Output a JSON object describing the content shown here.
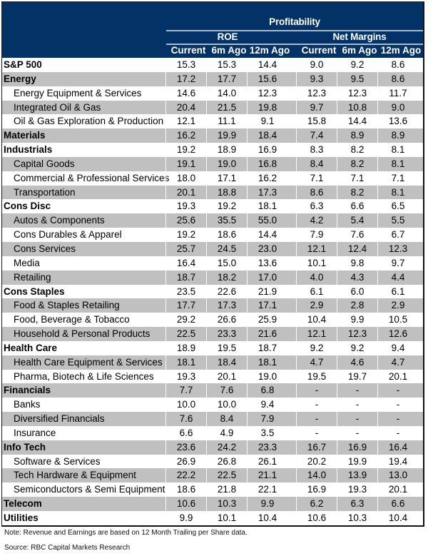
{
  "header": {
    "group_title": "Profitability",
    "roe_title": "ROE",
    "nm_title": "Net Margins",
    "columns": [
      "Current",
      "6m Ago",
      "12m Ago",
      "Current",
      "6m Ago",
      "12m Ago"
    ]
  },
  "rows": [
    {
      "name": "S&P 500",
      "level": "top",
      "values": [
        "15.3",
        "15.3",
        "14.4",
        "9.0",
        "9.2",
        "8.6"
      ]
    },
    {
      "name": "Energy",
      "level": "sector",
      "values": [
        "17.2",
        "17.7",
        "15.6",
        "9.3",
        "9.5",
        "8.6"
      ]
    },
    {
      "name": "Energy Equipment & Services",
      "level": "sub",
      "values": [
        "14.6",
        "14.0",
        "12.3",
        "12.3",
        "12.3",
        "11.7"
      ]
    },
    {
      "name": "Integrated Oil & Gas",
      "level": "sub",
      "values": [
        "20.4",
        "21.5",
        "19.8",
        "9.7",
        "10.8",
        "9.0"
      ]
    },
    {
      "name": "Oil & Gas Exploration & Production",
      "level": "sub",
      "values": [
        "12.1",
        "11.1",
        "9.1",
        "15.8",
        "14.4",
        "13.6"
      ]
    },
    {
      "name": "Materials",
      "level": "sector",
      "values": [
        "16.2",
        "19.9",
        "18.4",
        "7.4",
        "8.9",
        "8.9"
      ]
    },
    {
      "name": "Industrials",
      "level": "sector",
      "values": [
        "19.2",
        "18.9",
        "16.9",
        "8.3",
        "8.2",
        "8.1"
      ]
    },
    {
      "name": "Capital Goods",
      "level": "sub",
      "values": [
        "19.1",
        "19.0",
        "16.8",
        "8.4",
        "8.2",
        "8.1"
      ]
    },
    {
      "name": "Commercial & Professional Services",
      "level": "sub",
      "values": [
        "18.0",
        "17.1",
        "16.2",
        "7.1",
        "7.1",
        "7.1"
      ]
    },
    {
      "name": "Transportation",
      "level": "sub",
      "values": [
        "20.1",
        "18.8",
        "17.3",
        "8.6",
        "8.2",
        "8.1"
      ]
    },
    {
      "name": "Cons Disc",
      "level": "sector",
      "values": [
        "19.3",
        "19.2",
        "18.1",
        "6.3",
        "6.6",
        "6.5"
      ]
    },
    {
      "name": "Autos & Components",
      "level": "sub",
      "values": [
        "25.6",
        "35.5",
        "55.0",
        "4.2",
        "5.4",
        "5.5"
      ]
    },
    {
      "name": "Cons Durables & Apparel",
      "level": "sub",
      "values": [
        "19.2",
        "18.6",
        "14.4",
        "7.9",
        "7.6",
        "6.7"
      ]
    },
    {
      "name": "Cons Services",
      "level": "sub",
      "values": [
        "25.7",
        "24.5",
        "23.0",
        "12.1",
        "12.4",
        "12.3"
      ]
    },
    {
      "name": "Media",
      "level": "sub",
      "values": [
        "16.4",
        "15.0",
        "13.6",
        "10.1",
        "9.8",
        "9.7"
      ]
    },
    {
      "name": "Retailing",
      "level": "sub",
      "values": [
        "18.7",
        "18.2",
        "17.0",
        "4.0",
        "4.3",
        "4.4"
      ]
    },
    {
      "name": "Cons Staples",
      "level": "sector",
      "values": [
        "23.5",
        "22.6",
        "21.9",
        "6.1",
        "6.0",
        "6.1"
      ]
    },
    {
      "name": "Food & Staples Retailing",
      "level": "sub",
      "values": [
        "17.7",
        "17.3",
        "17.1",
        "2.9",
        "2.8",
        "2.9"
      ]
    },
    {
      "name": "Food, Beverage & Tobacco",
      "level": "sub",
      "values": [
        "29.2",
        "26.6",
        "25.9",
        "10.4",
        "9.9",
        "10.5"
      ]
    },
    {
      "name": "Household & Personal Products",
      "level": "sub",
      "values": [
        "22.5",
        "23.3",
        "21.6",
        "12.1",
        "12.3",
        "12.6"
      ]
    },
    {
      "name": "Health Care",
      "level": "sector",
      "values": [
        "18.9",
        "19.5",
        "18.7",
        "9.2",
        "9.2",
        "9.4"
      ]
    },
    {
      "name": "Health Care Equipment & Services",
      "level": "sub",
      "values": [
        "18.1",
        "18.4",
        "18.1",
        "4.7",
        "4.6",
        "4.7"
      ]
    },
    {
      "name": "Pharma, Biotech & Life Sciences",
      "level": "sub",
      "values": [
        "19.3",
        "20.1",
        "19.0",
        "19.5",
        "19.7",
        "20.1"
      ]
    },
    {
      "name": "Financials",
      "level": "sector",
      "values": [
        "7.7",
        "7.6",
        "6.8",
        "-",
        "-",
        "-"
      ]
    },
    {
      "name": "Banks",
      "level": "sub",
      "values": [
        "10.0",
        "10.0",
        "9.4",
        "-",
        "-",
        "-"
      ]
    },
    {
      "name": "Diversified Financials",
      "level": "sub",
      "values": [
        "7.6",
        "8.4",
        "7.9",
        "-",
        "-",
        "-"
      ]
    },
    {
      "name": "Insurance",
      "level": "sub",
      "values": [
        "6.6",
        "4.9",
        "3.5",
        "-",
        "-",
        "-"
      ]
    },
    {
      "name": "Info Tech",
      "level": "sector",
      "values": [
        "23.6",
        "24.2",
        "23.3",
        "16.7",
        "16.9",
        "16.4"
      ]
    },
    {
      "name": "Software & Services",
      "level": "sub",
      "values": [
        "26.9",
        "26.8",
        "26.1",
        "20.2",
        "19.9",
        "19.4"
      ]
    },
    {
      "name": "Tech Hardware & Equipment",
      "level": "sub",
      "values": [
        "22.2",
        "22.5",
        "21.1",
        "14.0",
        "13.9",
        "13.0"
      ]
    },
    {
      "name": "Semiconductors & Semi Equipment",
      "level": "sub",
      "values": [
        "18.6",
        "21.8",
        "22.1",
        "16.9",
        "19.3",
        "20.1"
      ]
    },
    {
      "name": "Telecom",
      "level": "sector",
      "values": [
        "10.6",
        "10.3",
        "9.9",
        "6.2",
        "6.3",
        "6.6"
      ]
    },
    {
      "name": "Utilities",
      "level": "sector",
      "values": [
        "9.9",
        "10.1",
        "10.4",
        "10.6",
        "10.3",
        "10.4"
      ]
    }
  ],
  "notes": {
    "note": "Note: Revenue and Earnings are based on 12 Month Trailing per Share data.",
    "source": "Source: RBC Capital Markets Research"
  },
  "colors": {
    "header_bg": "#033366",
    "shade_row": "#c0c0c0"
  }
}
